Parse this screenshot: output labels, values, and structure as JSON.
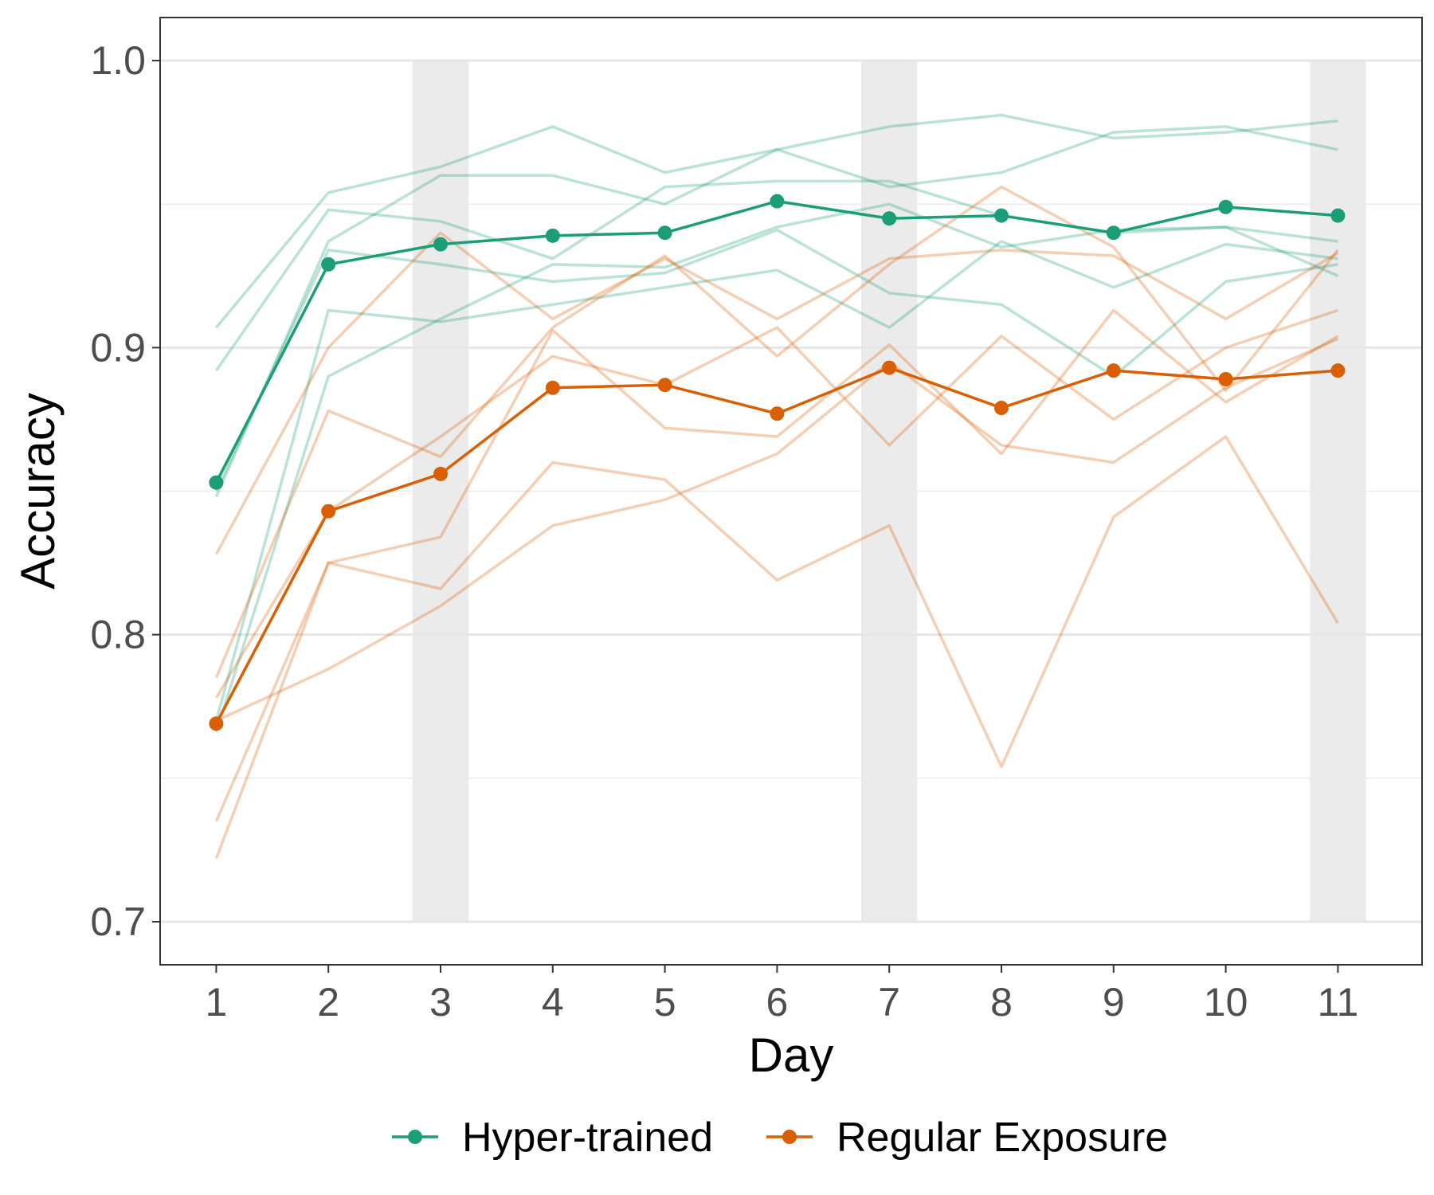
{
  "chart_data": {
    "type": "line",
    "title": "",
    "xlabel": "Day",
    "ylabel": "Accuracy",
    "x": [
      1,
      2,
      3,
      4,
      5,
      6,
      7,
      8,
      9,
      10,
      11
    ],
    "x_tick_labels": [
      "1",
      "2",
      "3",
      "4",
      "5",
      "6",
      "7",
      "8",
      "9",
      "10",
      "11"
    ],
    "xlim": [
      0.5,
      11.75
    ],
    "y_ticks": [
      0.7,
      0.8,
      0.9,
      1.0
    ],
    "y_tick_labels": [
      "0.7",
      "0.8",
      "0.9",
      "1.0"
    ],
    "ylim": [
      0.685,
      1.015
    ],
    "grid": true,
    "shaded_days": [
      3,
      7,
      11
    ],
    "legend": {
      "placement": "bottom",
      "entries": [
        "Hyper-trained",
        "Regular Exposure"
      ]
    },
    "series": [
      {
        "name": "Hyper-trained",
        "color": "#1b9e77",
        "values": [
          0.853,
          0.929,
          0.936,
          0.939,
          0.94,
          0.951,
          0.945,
          0.946,
          0.94,
          0.949,
          0.946
        ]
      },
      {
        "name": "Regular Exposure",
        "color": "#d95f02",
        "values": [
          0.769,
          0.843,
          0.856,
          0.886,
          0.887,
          0.877,
          0.893,
          0.879,
          0.892,
          0.889,
          0.892
        ]
      }
    ],
    "individual_series": {
      "Hyper-trained": [
        [
          0.907,
          0.954,
          0.963,
          0.977,
          0.961,
          0.969,
          0.977,
          0.981,
          0.973,
          0.975,
          0.979
        ],
        [
          0.892,
          0.948,
          0.944,
          0.931,
          0.956,
          0.958,
          0.958,
          0.946,
          0.94,
          0.942,
          0.937
        ],
        [
          0.848,
          0.937,
          0.96,
          0.96,
          0.95,
          0.969,
          0.956,
          0.961,
          0.975,
          0.977,
          0.969
        ],
        [
          0.85,
          0.934,
          0.929,
          0.923,
          0.926,
          0.941,
          0.919,
          0.915,
          0.89,
          0.923,
          0.929
        ],
        [
          0.77,
          0.913,
          0.909,
          0.915,
          0.921,
          0.927,
          0.907,
          0.937,
          0.921,
          0.936,
          0.931
        ],
        [
          0.766,
          0.89,
          0.91,
          0.929,
          0.928,
          0.942,
          0.95,
          0.935,
          0.941,
          0.942,
          0.925
        ]
      ],
      "Regular Exposure": [
        [
          0.828,
          0.9,
          0.94,
          0.91,
          0.931,
          0.91,
          0.931,
          0.934,
          0.932,
          0.91,
          0.933
        ],
        [
          0.785,
          0.878,
          0.862,
          0.907,
          0.932,
          0.897,
          0.929,
          0.956,
          0.935,
          0.885,
          0.934
        ],
        [
          0.778,
          0.843,
          0.869,
          0.897,
          0.887,
          0.907,
          0.866,
          0.904,
          0.875,
          0.9,
          0.913
        ],
        [
          0.735,
          0.825,
          0.834,
          0.906,
          0.872,
          0.869,
          0.901,
          0.863,
          0.913,
          0.881,
          0.904
        ],
        [
          0.722,
          0.825,
          0.816,
          0.86,
          0.854,
          0.819,
          0.838,
          0.754,
          0.841,
          0.869,
          0.804
        ],
        [
          0.77,
          0.788,
          0.81,
          0.838,
          0.847,
          0.863,
          0.895,
          0.866,
          0.86,
          0.886,
          0.903
        ]
      ]
    }
  }
}
